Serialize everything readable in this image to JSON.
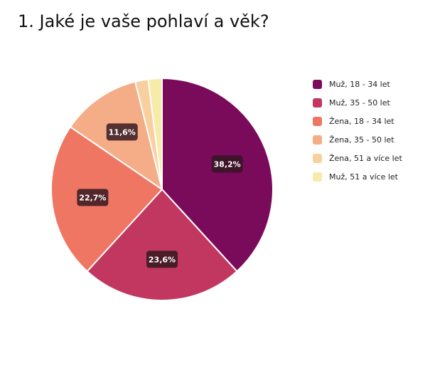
{
  "chart_data": {
    "type": "pie",
    "title": "1. Jaké je vaše pohlaví a věk?",
    "categories": [
      "Muž, 18 - 34 let",
      "Muž, 35 - 50 let",
      "Žena, 18 - 34 let",
      "Žena, 35 - 50 let",
      "Žena, 51 a více let",
      "Muž, 51 a více let"
    ],
    "values": [
      38.2,
      23.6,
      22.7,
      11.6,
      1.9,
      2.0
    ],
    "data_labels": [
      "38,2%",
      "23,6%",
      "22,7%",
      "11,6%",
      "",
      ""
    ],
    "colors": [
      "#7a0b5b",
      "#c2375f",
      "#ef7663",
      "#f4ad86",
      "#f9cfa0",
      "#f7ebaa"
    ],
    "start_angle": "12 o'clock",
    "direction": "clockwise",
    "legend_position": "right"
  }
}
